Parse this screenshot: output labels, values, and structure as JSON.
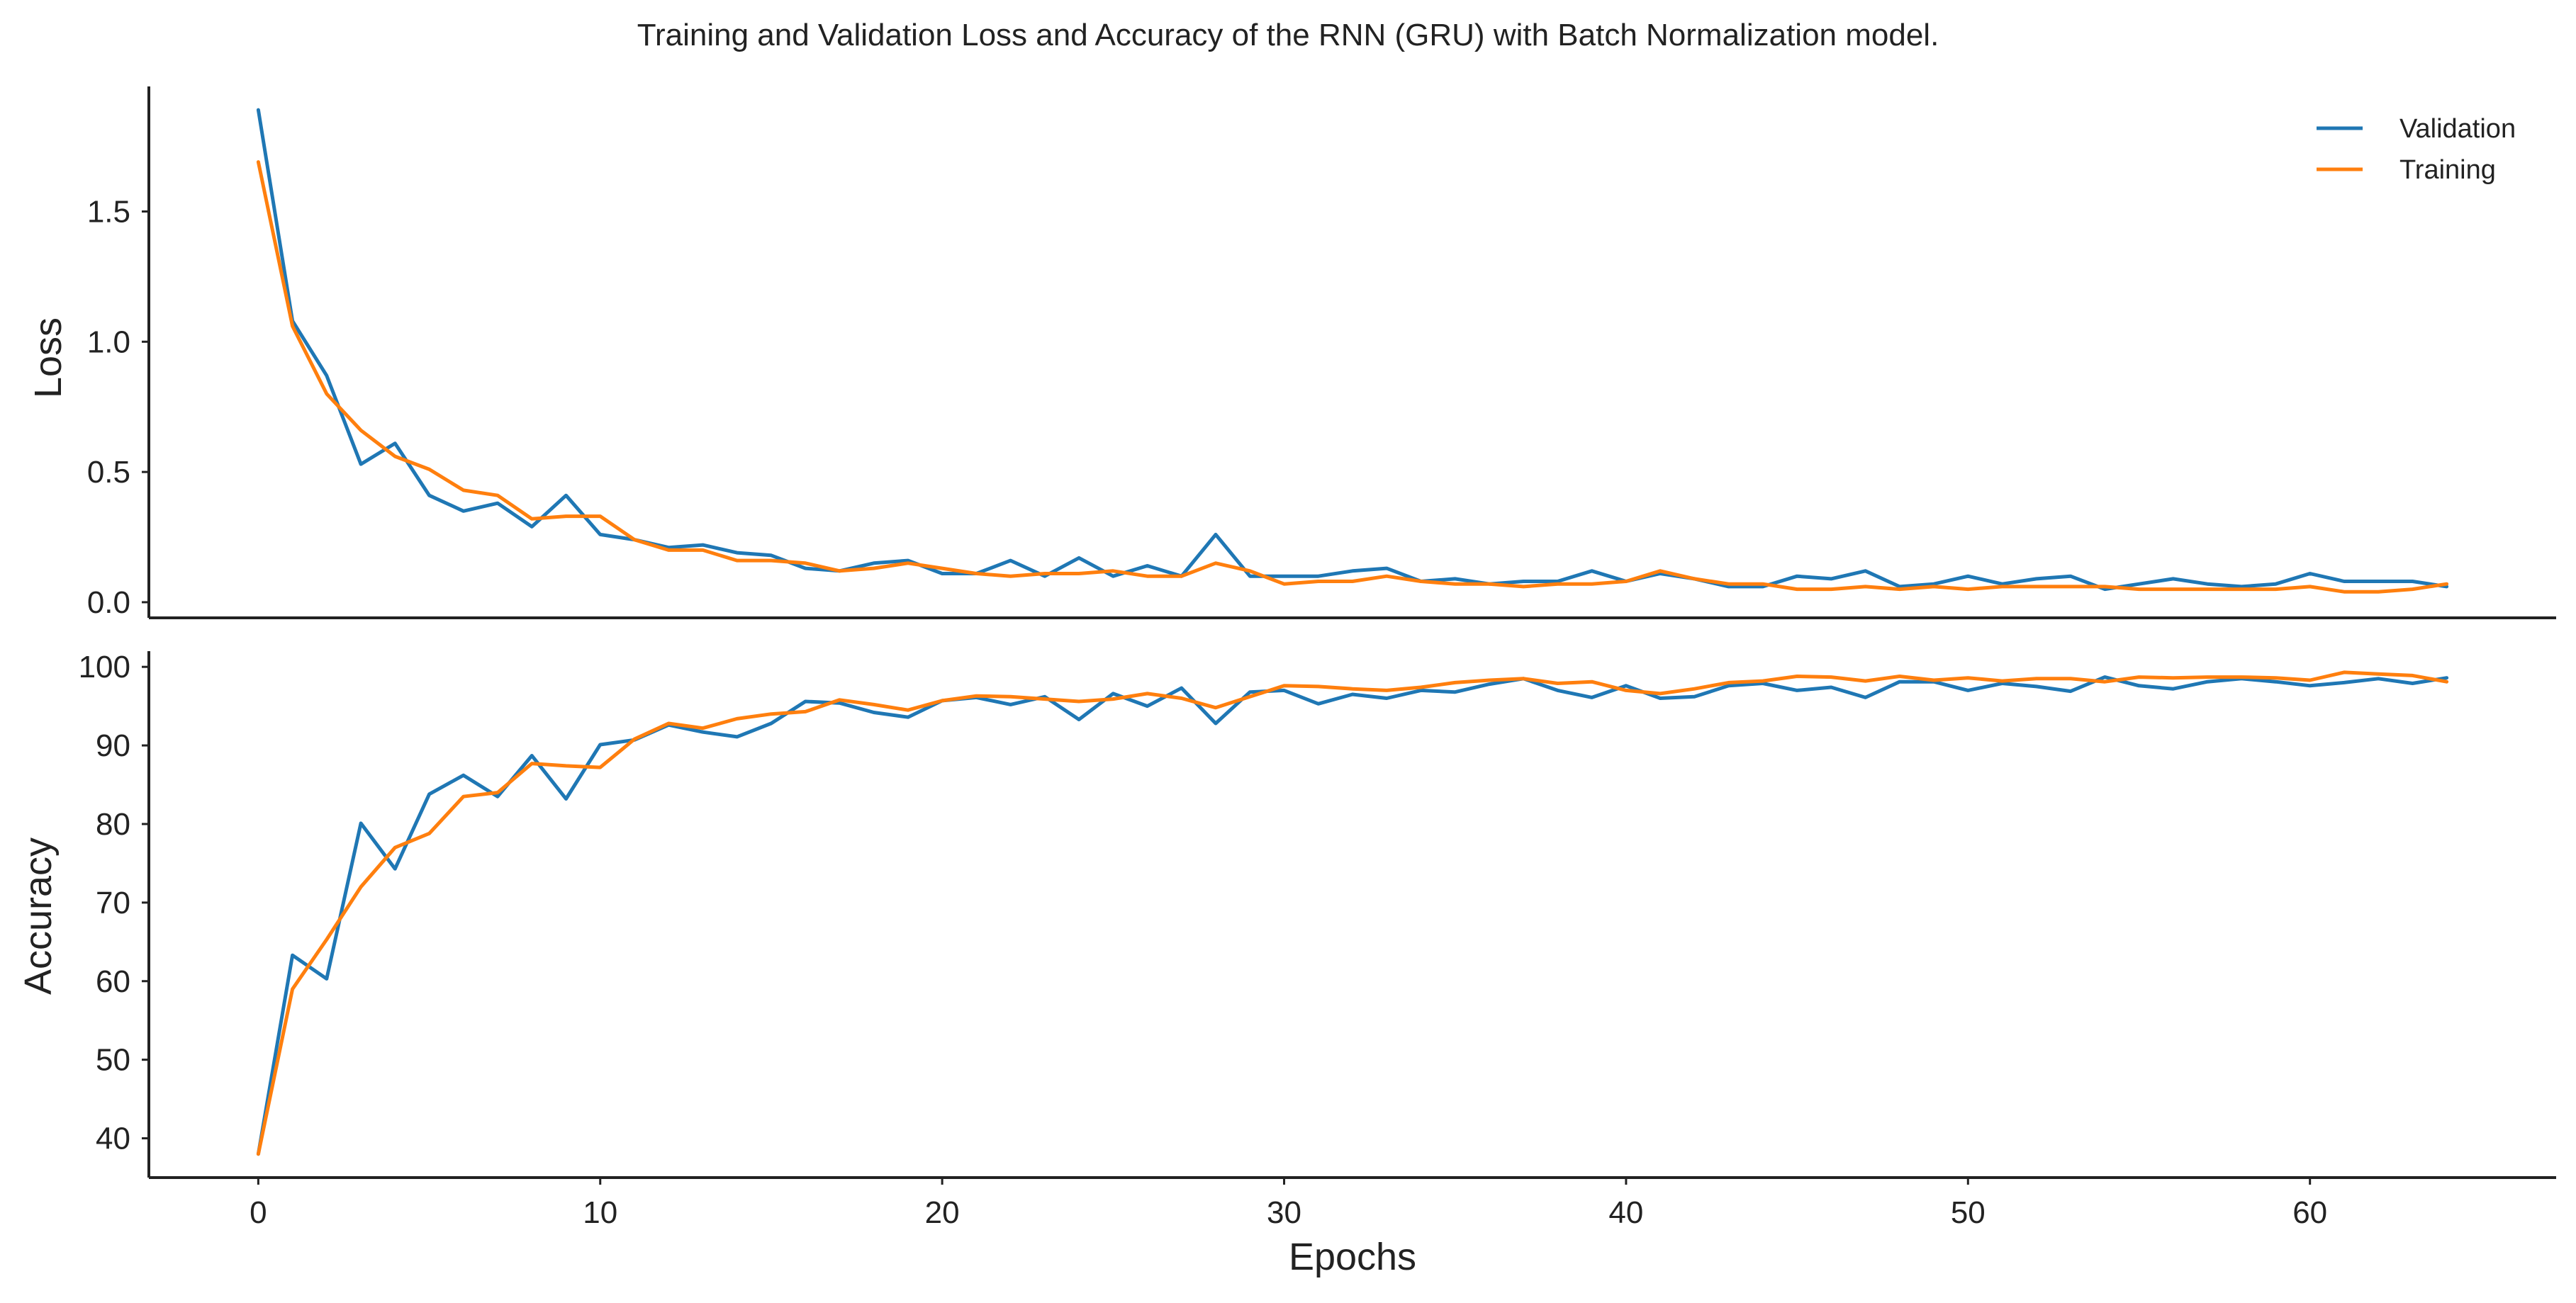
{
  "chart_data": {
    "type": "line",
    "title": "Training and Validation Loss and Accuracy of the RNN (GRU) with Batch Normalization model.",
    "xlabel": "Epochs",
    "x_ticks": [
      0,
      10,
      20,
      30,
      40,
      50,
      60
    ],
    "xlim": [
      -3.2,
      67.2
    ],
    "grid": false,
    "panels": [
      {
        "ylabel": "Loss",
        "ylim": [
          -0.06,
          1.98
        ],
        "y_ticks": [
          0.0,
          0.5,
          1.0,
          1.5
        ],
        "y_tick_labels": [
          "0.0",
          "0.5",
          "1.0",
          "1.5"
        ],
        "legend": {
          "placement": "top-right",
          "entries": [
            "Validation",
            "Training"
          ]
        },
        "series": [
          {
            "name": "Validation",
            "color": "#1f77b4",
            "values": [
              1.89,
              1.08,
              0.87,
              0.53,
              0.61,
              0.41,
              0.35,
              0.38,
              0.29,
              0.41,
              0.26,
              0.24,
              0.21,
              0.22,
              0.19,
              0.18,
              0.13,
              0.12,
              0.15,
              0.16,
              0.11,
              0.11,
              0.16,
              0.1,
              0.17,
              0.1,
              0.14,
              0.1,
              0.26,
              0.1,
              0.1,
              0.1,
              0.12,
              0.13,
              0.08,
              0.09,
              0.07,
              0.08,
              0.08,
              0.12,
              0.08,
              0.11,
              0.09,
              0.06,
              0.06,
              0.1,
              0.09,
              0.12,
              0.06,
              0.07,
              0.1,
              0.07,
              0.09,
              0.1,
              0.05,
              0.07,
              0.09,
              0.07,
              0.06,
              0.07,
              0.11,
              0.08,
              0.08,
              0.08,
              0.06
            ]
          },
          {
            "name": "Training",
            "color": "#ff7f0e",
            "values": [
              1.69,
              1.06,
              0.8,
              0.66,
              0.56,
              0.51,
              0.43,
              0.41,
              0.32,
              0.33,
              0.33,
              0.24,
              0.2,
              0.2,
              0.16,
              0.16,
              0.15,
              0.12,
              0.13,
              0.15,
              0.13,
              0.11,
              0.1,
              0.11,
              0.11,
              0.12,
              0.1,
              0.1,
              0.15,
              0.12,
              0.07,
              0.08,
              0.08,
              0.1,
              0.08,
              0.07,
              0.07,
              0.06,
              0.07,
              0.07,
              0.08,
              0.12,
              0.09,
              0.07,
              0.07,
              0.05,
              0.05,
              0.06,
              0.05,
              0.06,
              0.05,
              0.06,
              0.06,
              0.06,
              0.06,
              0.05,
              0.05,
              0.05,
              0.05,
              0.05,
              0.06,
              0.04,
              0.04,
              0.05,
              0.07
            ]
          }
        ]
      },
      {
        "ylabel": "Accuracy",
        "ylim": [
          35,
          102
        ],
        "y_ticks": [
          40,
          50,
          60,
          70,
          80,
          90,
          100
        ],
        "y_tick_labels": [
          "40",
          "50",
          "60",
          "70",
          "80",
          "90",
          "100"
        ],
        "series": [
          {
            "name": "Validation",
            "color": "#1f77b4",
            "values": [
              38,
              63.3,
              60.3,
              80.1,
              74.3,
              83.8,
              86.2,
              83.5,
              88.7,
              83.2,
              90.1,
              90.7,
              92.6,
              91.7,
              91.1,
              92.8,
              95.6,
              95.4,
              94.2,
              93.6,
              95.7,
              96.1,
              95.2,
              96.2,
              93.3,
              96.6,
              95,
              97.3,
              92.8,
              96.8,
              97,
              95.3,
              96.5,
              96,
              97,
              96.8,
              97.8,
              98.5,
              97,
              96.1,
              97.6,
              96,
              96.2,
              97.6,
              97.9,
              97,
              97.4,
              96.1,
              98.1,
              98.1,
              97,
              97.9,
              97.5,
              96.9,
              98.7,
              97.6,
              97.2,
              98.1,
              98.5,
              98.1,
              97.6,
              98,
              98.5,
              97.9,
              98.6
            ]
          },
          {
            "name": "Training",
            "color": "#ff7f0e",
            "values": [
              38,
              59,
              65.3,
              72,
              77,
              78.8,
              83.5,
              84,
              87.7,
              87.4,
              87.2,
              90.8,
              92.8,
              92.2,
              93.4,
              94,
              94.3,
              95.8,
              95.2,
              94.5,
              95.7,
              96.3,
              96.2,
              95.9,
              95.6,
              95.9,
              96.6,
              96,
              94.8,
              96.2,
              97.6,
              97.5,
              97.2,
              97,
              97.4,
              98,
              98.3,
              98.5,
              97.9,
              98.1,
              97,
              96.6,
              97.2,
              98,
              98.2,
              98.8,
              98.7,
              98.2,
              98.8,
              98.3,
              98.6,
              98.2,
              98.5,
              98.5,
              98.1,
              98.7,
              98.6,
              98.7,
              98.7,
              98.6,
              98.3,
              99.3,
              99.1,
              98.9,
              98.1
            ]
          }
        ]
      }
    ]
  }
}
